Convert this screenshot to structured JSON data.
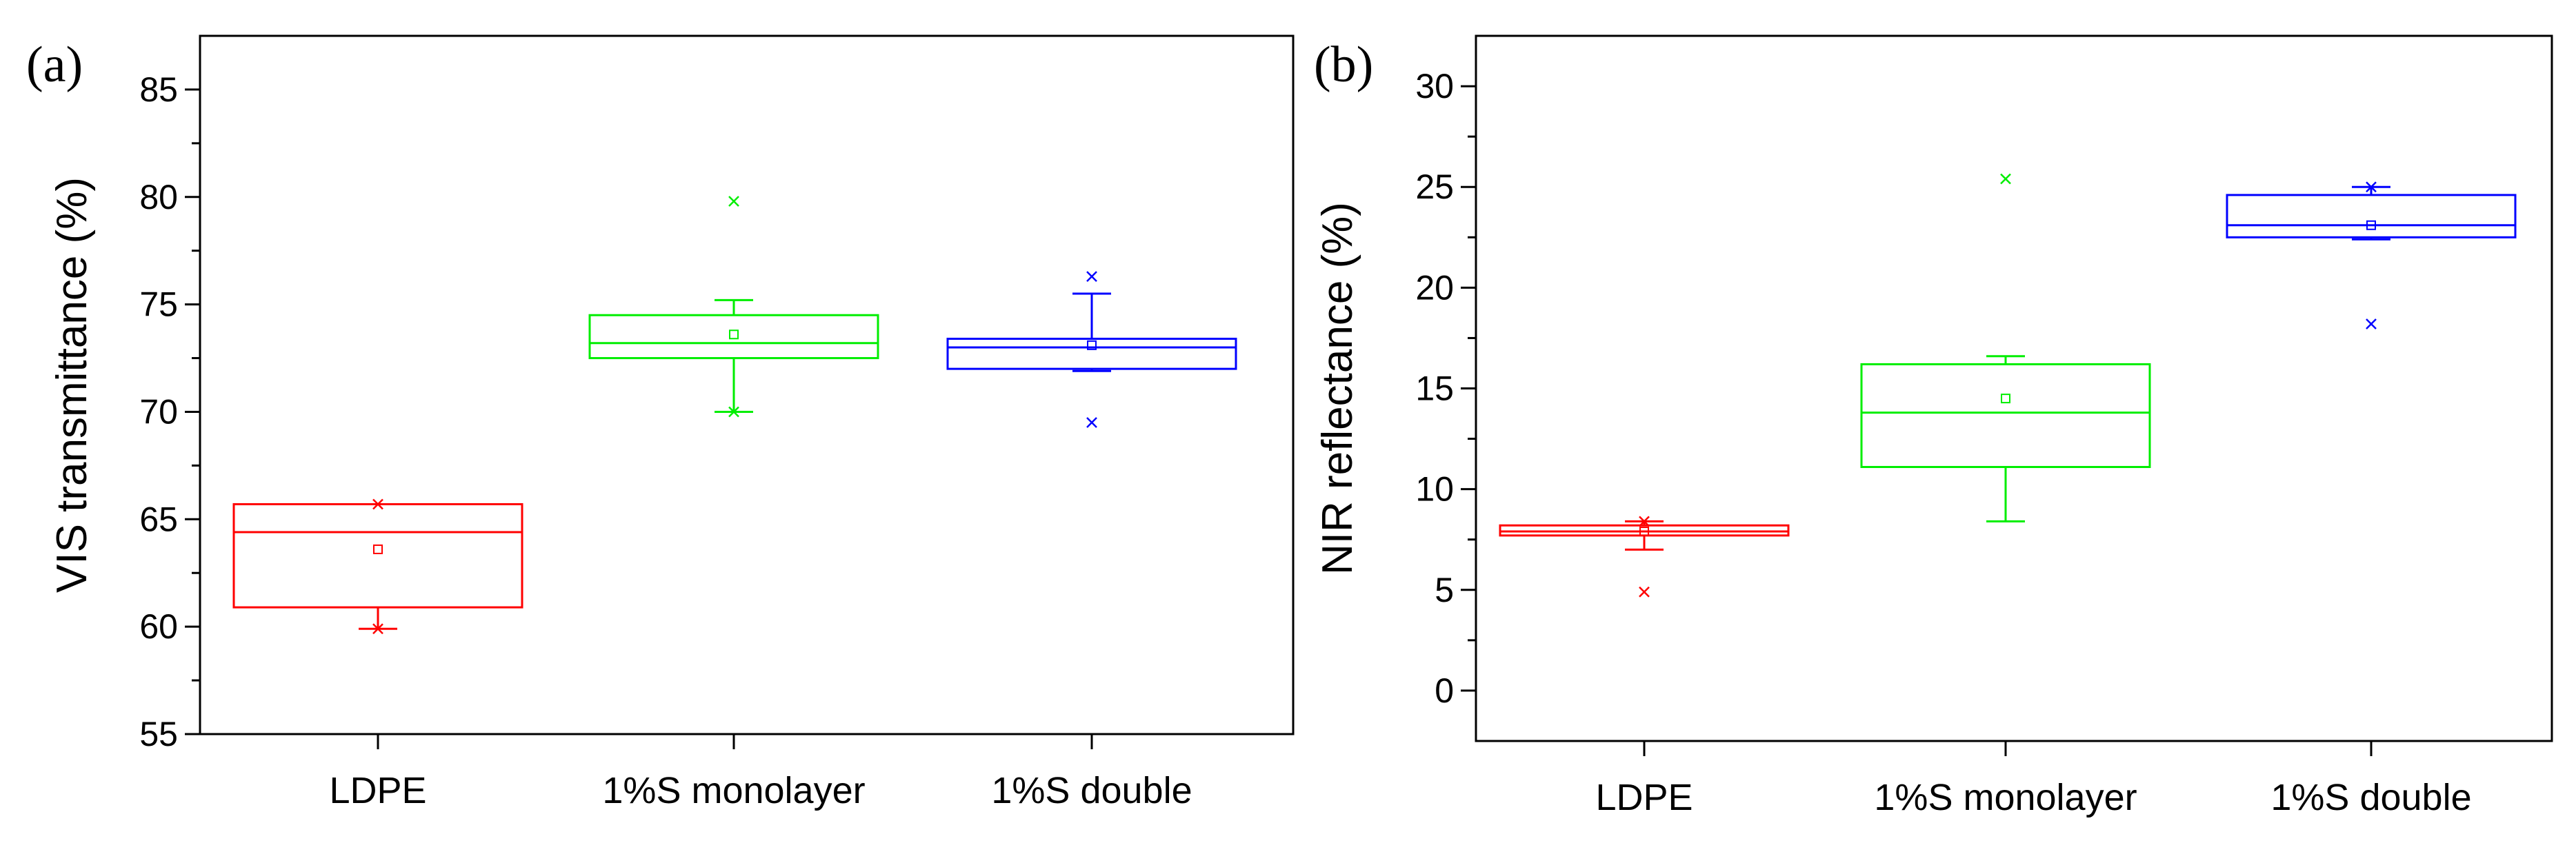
{
  "chart_data": [
    {
      "type": "box",
      "panel_label": "(a)",
      "title": "",
      "xlabel": "",
      "ylabel": "VIS transmittance (%)",
      "ylim": [
        55,
        87.5
      ],
      "yticks": [
        55,
        60,
        65,
        70,
        75,
        80,
        85
      ],
      "ytick_labels": [
        "55",
        "60",
        "65",
        "70",
        "75",
        "80",
        "85"
      ],
      "categories": [
        "LDPE",
        "1%S monolayer",
        "1%S double"
      ],
      "series": [
        {
          "name": "LDPE",
          "color": "#ff0000",
          "whisker_low": 59.9,
          "q1": 60.9,
          "median": 64.4,
          "q3": 65.7,
          "whisker_high": 65.7,
          "mean": 63.6,
          "outliers": [],
          "extremes": [
            59.9,
            65.7
          ]
        },
        {
          "name": "1%S monolayer",
          "color": "#00ee00",
          "whisker_low": 70.0,
          "q1": 72.5,
          "median": 73.2,
          "q3": 74.5,
          "whisker_high": 75.2,
          "mean": 73.6,
          "outliers": [
            79.8
          ],
          "extremes": [
            70.0
          ]
        },
        {
          "name": "1%S double",
          "color": "#0000ff",
          "whisker_low": 71.9,
          "q1": 72.0,
          "median": 73.0,
          "q3": 73.4,
          "whisker_high": 75.5,
          "mean": 73.1,
          "outliers": [
            76.3,
            69.5
          ],
          "extremes": []
        }
      ]
    },
    {
      "type": "box",
      "panel_label": "(b)",
      "title": "",
      "xlabel": "",
      "ylabel": "NIR reflectance (%)",
      "ylim": [
        -2.5,
        32.5
      ],
      "yticks": [
        0,
        5,
        10,
        15,
        20,
        25,
        30
      ],
      "ytick_labels": [
        "0",
        "5",
        "10",
        "15",
        "20",
        "25",
        "30"
      ],
      "categories": [
        "LDPE",
        "1%S monolayer",
        "1%S double"
      ],
      "series": [
        {
          "name": "LDPE",
          "color": "#ff0000",
          "whisker_low": 7.0,
          "q1": 7.7,
          "median": 7.9,
          "q3": 8.2,
          "whisker_high": 8.4,
          "mean": 7.9,
          "outliers": [
            4.9
          ],
          "extremes": [
            8.4
          ]
        },
        {
          "name": "1%S monolayer",
          "color": "#00ee00",
          "whisker_low": 8.4,
          "q1": 11.1,
          "median": 13.8,
          "q3": 16.2,
          "whisker_high": 16.6,
          "mean": 14.5,
          "outliers": [
            25.4
          ],
          "extremes": []
        },
        {
          "name": "1%S double",
          "color": "#0000ff",
          "whisker_low": 22.4,
          "q1": 22.5,
          "median": 23.1,
          "q3": 24.6,
          "whisker_high": 25.0,
          "mean": 23.1,
          "outliers": [
            18.2
          ],
          "extremes": [
            25.0
          ]
        }
      ]
    }
  ]
}
